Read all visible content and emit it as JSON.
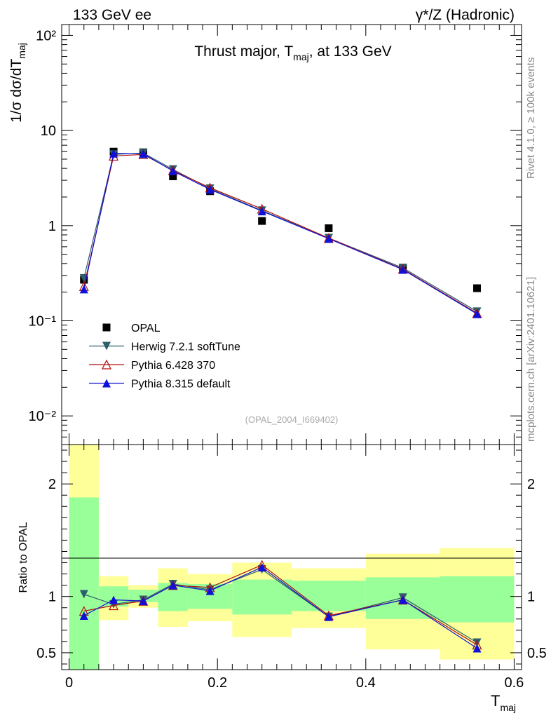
{
  "header": {
    "left": "133 GeV ee",
    "right": "γ*/Z (Hadronic)"
  },
  "side_text": {
    "rivet": "Rivet 4.1.0, ≥ 100k events",
    "mcplots": "mcplots.cern.ch [arXiv:2401.10621]"
  },
  "chart_data": [
    {
      "type": "line",
      "title": "Thrust major, T_maj, at 133 GeV",
      "xlabel": "T_maj",
      "ylabel": "1/σ dσ/dT_maj",
      "yscale": "log",
      "xlim": [
        -0.01,
        0.61
      ],
      "ylim": [
        0.005,
        130
      ],
      "yticks": [
        "10⁻²",
        "10⁻¹",
        "1",
        "10",
        "10²"
      ],
      "reference_label": "(OPAL_2004_I669402)",
      "legend_position": "bottom-left",
      "series": [
        {
          "name": "OPAL",
          "marker": "square",
          "color": "#000000",
          "x": [
            0.02,
            0.06,
            0.1,
            0.14,
            0.19,
            0.26,
            0.35,
            0.45,
            0.55
          ],
          "y": [
            0.27,
            6.0,
            5.9,
            3.3,
            2.3,
            1.12,
            0.94,
            0.36,
            0.22
          ]
        },
        {
          "name": "Herwig 7.2.1 softTune",
          "marker": "triangle-down",
          "color": "#2c5f6b",
          "x": [
            0.02,
            0.06,
            0.1,
            0.14,
            0.19,
            0.26,
            0.35,
            0.45,
            0.55
          ],
          "y": [
            0.28,
            5.6,
            5.8,
            3.9,
            2.45,
            1.44,
            0.74,
            0.36,
            0.125
          ]
        },
        {
          "name": "Pythia 6.428 370",
          "marker": "triangle-open",
          "color": "#b01010",
          "x": [
            0.02,
            0.06,
            0.1,
            0.14,
            0.19,
            0.26,
            0.35,
            0.45,
            0.55
          ],
          "y": [
            0.23,
            5.4,
            5.6,
            3.8,
            2.5,
            1.5,
            0.74,
            0.35,
            0.12
          ]
        },
        {
          "name": "Pythia 8.315 default",
          "marker": "triangle-up",
          "color": "#1010d8",
          "x": [
            0.02,
            0.06,
            0.1,
            0.14,
            0.19,
            0.26,
            0.35,
            0.45,
            0.55
          ],
          "y": [
            0.215,
            5.75,
            5.7,
            3.75,
            2.4,
            1.42,
            0.73,
            0.345,
            0.118
          ]
        }
      ]
    },
    {
      "type": "line",
      "title": "",
      "xlabel": "T_maj",
      "ylabel": "Ratio to OPAL",
      "xlim": [
        -0.01,
        0.61
      ],
      "ylim": [
        0.35,
        2.35
      ],
      "xticks": [
        "0",
        "0.2",
        "0.4",
        "0.6"
      ],
      "yticks": [
        "0.5",
        "1",
        "2"
      ],
      "bands": {
        "x_edges": [
          0.0,
          0.04,
          0.08,
          0.12,
          0.16,
          0.22,
          0.3,
          0.4,
          0.5,
          0.6
        ],
        "inner_lo": [
          0.35,
          0.91,
          0.95,
          0.87,
          0.89,
          0.84,
          0.87,
          0.8,
          0.77
        ],
        "inner_hi": [
          1.88,
          1.09,
          1.06,
          1.12,
          1.11,
          1.15,
          1.14,
          1.17,
          1.18
        ],
        "outer_lo": [
          0.35,
          0.79,
          0.9,
          0.73,
          0.78,
          0.64,
          0.72,
          0.53,
          0.44
        ],
        "outer_hi": [
          2.35,
          1.18,
          1.1,
          1.25,
          1.2,
          1.3,
          1.25,
          1.38,
          1.43
        ],
        "inner_color": "#99ff99",
        "outer_color": "#ffff99"
      },
      "series": [
        {
          "name": "Herwig 7.2.1 softTune",
          "marker": "triangle-down",
          "color": "#2c5f6b",
          "x": [
            0.02,
            0.06,
            0.1,
            0.14,
            0.19,
            0.26,
            0.35,
            0.45,
            0.55
          ],
          "y": [
            1.02,
            0.93,
            0.97,
            1.11,
            1.06,
            1.24,
            0.82,
            0.99,
            0.59
          ]
        },
        {
          "name": "Pythia 6.428 370",
          "marker": "triangle-open",
          "color": "#b01010",
          "x": [
            0.02,
            0.06,
            0.1,
            0.14,
            0.19,
            0.26,
            0.35,
            0.45,
            0.55
          ],
          "y": [
            0.87,
            0.92,
            0.96,
            1.1,
            1.08,
            1.28,
            0.83,
            0.97,
            0.57
          ]
        },
        {
          "name": "Pythia 8.315 default",
          "marker": "triangle-up",
          "color": "#1010d8",
          "x": [
            0.02,
            0.06,
            0.1,
            0.14,
            0.19,
            0.26,
            0.35,
            0.45,
            0.55
          ],
          "y": [
            0.83,
            0.97,
            0.96,
            1.1,
            1.05,
            1.26,
            0.82,
            0.97,
            0.54
          ]
        }
      ]
    }
  ]
}
